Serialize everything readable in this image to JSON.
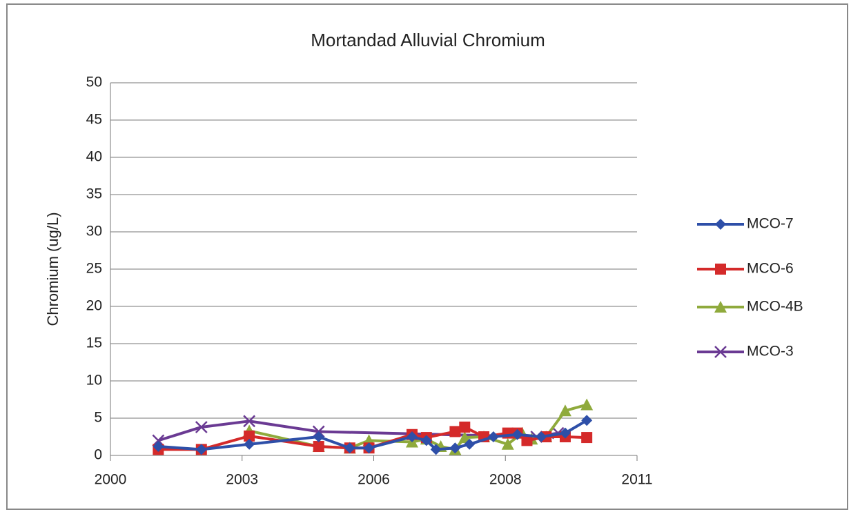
{
  "chart_data": {
    "type": "line",
    "title": "Mortandad Alluvial Chromium",
    "y_label": "Chromium (ug/L)",
    "xlim": [
      2000,
      2011
    ],
    "xticks": [
      2000,
      {
        "value": 2002.75,
        "label": "2003"
      },
      {
        "value": 2005.5,
        "label": "2006"
      },
      {
        "value": 2008.25,
        "label": "2008"
      },
      2011
    ],
    "ylim": [
      0,
      50
    ],
    "yticks": [
      0,
      5,
      10,
      15,
      20,
      25,
      30,
      35,
      40,
      45,
      50
    ],
    "grid": true,
    "legend": "right",
    "series": [
      {
        "name": "MCO-7",
        "color": "#2e4fa8",
        "marker": "diamond",
        "x": [
          2001.0,
          2001.9,
          2002.9,
          2004.35,
          2005.0,
          2005.4,
          2006.3,
          2006.6,
          2006.8,
          2007.2,
          2007.5,
          2008.0,
          2008.5,
          2009.0,
          2009.5,
          2009.95
        ],
        "values": [
          1.2,
          0.8,
          1.5,
          2.5,
          1.0,
          1.0,
          2.5,
          2.0,
          0.8,
          1.0,
          1.5,
          2.5,
          2.8,
          2.5,
          3.0,
          4.7
        ]
      },
      {
        "name": "MCO-6",
        "color": "#d42a2a",
        "marker": "square",
        "x": [
          2001.0,
          2001.9,
          2002.9,
          2004.35,
          2005.0,
          2005.4,
          2006.3,
          2006.6,
          2007.2,
          2007.4,
          2007.8,
          2008.3,
          2008.5,
          2008.7,
          2009.1,
          2009.5,
          2009.95
        ],
        "values": [
          0.8,
          0.8,
          2.6,
          1.2,
          1.0,
          1.0,
          2.8,
          2.4,
          3.2,
          3.8,
          2.5,
          3.0,
          3.0,
          2.0,
          2.5,
          2.5,
          2.4
        ]
      },
      {
        "name": "MCO-4B",
        "color": "#8faa3c",
        "marker": "triangle",
        "x": [
          2002.9,
          2004.35,
          2005.0,
          2005.4,
          2006.3,
          2006.6,
          2006.9,
          2007.2,
          2007.4,
          2007.8,
          2008.3,
          2008.6,
          2008.8,
          2009.1,
          2009.5,
          2009.95
        ],
        "values": [
          3.3,
          1.2,
          1.0,
          2.0,
          1.8,
          2.2,
          1.2,
          0.8,
          2.4,
          2.5,
          1.5,
          3.0,
          2.2,
          2.5,
          6.0,
          6.8
        ]
      },
      {
        "name": "MCO-3",
        "color": "#6a3a93",
        "marker": "cross",
        "x": [
          2001.0,
          2001.9,
          2002.9,
          2004.35,
          2008.9,
          2009.35
        ],
        "values": [
          2.0,
          3.8,
          4.6,
          3.2,
          2.5,
          3.0
        ]
      }
    ]
  }
}
